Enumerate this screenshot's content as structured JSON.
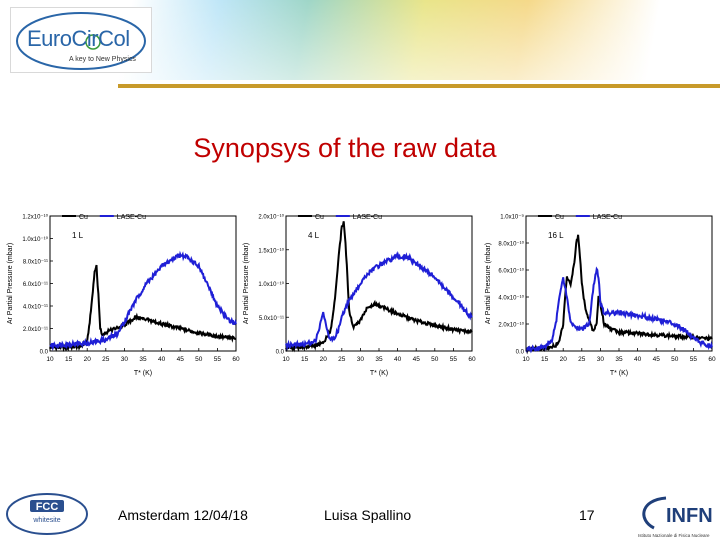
{
  "header": {
    "logo_main": "EuroCirCol",
    "logo_tagline": "A key to New Physics"
  },
  "title": "Synopsys of the raw data",
  "footer": {
    "fcc_logo_text": "FCC",
    "fcc_logo_sub": "whitesite",
    "location_date": "Amsterdam 12/04/18",
    "author": "Luisa Spallino",
    "page_number": "17",
    "infn_logo": "INFN",
    "infn_sub": "Istituto Nazionale di Fisica Nucleare"
  },
  "chart_data": [
    {
      "type": "line",
      "annotation": "1 L",
      "xlabel": "T* (K)",
      "ylabel": "Ar Partial Pressure (mbar)",
      "xlim": [
        10,
        60
      ],
      "ylim": [
        0,
        1.2e-10
      ],
      "xticks": [
        "10",
        "15",
        "20",
        "25",
        "30",
        "35",
        "40",
        "45",
        "50",
        "55",
        "60"
      ],
      "yticks": [
        {
          "v": 0,
          "label": "0.0"
        },
        {
          "v": 2e-11,
          "label": "2.0x10⁻¹¹"
        },
        {
          "v": 4e-11,
          "label": "4.0x10⁻¹¹"
        },
        {
          "v": 6e-11,
          "label": "6.0x10⁻¹¹"
        },
        {
          "v": 8e-11,
          "label": "8.0x10⁻¹¹"
        },
        {
          "v": 1e-10,
          "label": "1.0x10⁻¹⁰"
        },
        {
          "v": 1.2e-10,
          "label": "1.2x10⁻¹⁰"
        }
      ],
      "legend": "top",
      "series": [
        {
          "name": "Cu",
          "color": "#000000",
          "x": [
            10,
            18,
            20,
            21,
            22,
            22.5,
            23,
            23.5,
            24,
            26,
            30,
            33,
            36,
            40,
            45,
            50,
            55,
            60
          ],
          "y": [
            3e-12,
            4e-12,
            8e-12,
            3.5e-11,
            7e-11,
            7.5e-11,
            5e-11,
            2e-11,
            1.5e-11,
            1.8e-11,
            2.3e-11,
            3e-11,
            2.8e-11,
            2.4e-11,
            2e-11,
            1.6e-11,
            1.3e-11,
            1.1e-11
          ]
        },
        {
          "name": "LASE-Cu",
          "color": "#1f1fd6",
          "x": [
            10,
            20,
            25,
            28,
            30,
            33,
            36,
            40,
            43,
            45,
            47,
            50,
            53,
            55,
            58,
            60
          ],
          "y": [
            5e-12,
            7e-12,
            1e-11,
            1.5e-11,
            2.6e-11,
            4.5e-11,
            6e-11,
            7.5e-11,
            8.2e-11,
            8.5e-11,
            8.3e-11,
            7.5e-11,
            5.5e-11,
            4e-11,
            2.8e-11,
            2.4e-11
          ]
        }
      ]
    },
    {
      "type": "line",
      "annotation": "4 L",
      "xlabel": "T* (K)",
      "ylabel": "Ar Partial Pressure (mbar)",
      "xlim": [
        10,
        60
      ],
      "ylim": [
        0,
        2e-10
      ],
      "xticks": [
        "10",
        "15",
        "20",
        "25",
        "30",
        "35",
        "40",
        "45",
        "50",
        "55",
        "60"
      ],
      "yticks": [
        {
          "v": 0,
          "label": "0.0"
        },
        {
          "v": 5e-11,
          "label": "5.0x10⁻¹¹"
        },
        {
          "v": 1e-10,
          "label": "1.0x10⁻¹⁰"
        },
        {
          "v": 1.5e-10,
          "label": "1.5x10⁻¹⁰"
        },
        {
          "v": 2e-10,
          "label": "2.0x10⁻¹⁰"
        }
      ],
      "legend": "top",
      "series": [
        {
          "name": "Cu",
          "color": "#000000",
          "x": [
            10,
            15,
            18,
            20,
            22,
            23,
            24,
            25,
            25.5,
            26,
            27,
            28,
            30,
            32,
            34,
            36,
            40,
            45,
            50,
            55,
            60
          ],
          "y": [
            5e-12,
            6e-12,
            8e-12,
            1.2e-11,
            3e-11,
            7e-11,
            1.3e-10,
            1.85e-10,
            1.9e-10,
            1.6e-10,
            6e-11,
            3.5e-11,
            4.5e-11,
            6.5e-11,
            7e-11,
            6.5e-11,
            5.5e-11,
            4.5e-11,
            3.8e-11,
            3.2e-11,
            2.8e-11
          ]
        },
        {
          "name": "LASE-Cu",
          "color": "#1f1fd6",
          "x": [
            10,
            15,
            18,
            19,
            20,
            21,
            22,
            23,
            24,
            25,
            27,
            30,
            33,
            36,
            40,
            43,
            46,
            50,
            53,
            56,
            58,
            60
          ],
          "y": [
            8e-12,
            1e-11,
            1.5e-11,
            3.5e-11,
            6e-11,
            3e-11,
            1.8e-11,
            2e-11,
            3e-11,
            5e-11,
            7.5e-11,
            1e-10,
            1.2e-10,
            1.3e-10,
            1.4e-10,
            1.38e-10,
            1.25e-10,
            1.1e-10,
            9e-11,
            7.5e-11,
            6e-11,
            5e-11
          ]
        }
      ]
    },
    {
      "type": "line",
      "annotation": "16 L",
      "xlabel": "T* (K)",
      "ylabel": "Ar Partial Pressure (mbar)",
      "xlim": [
        10,
        60
      ],
      "ylim": [
        0,
        1e-09
      ],
      "xticks": [
        "10",
        "15",
        "20",
        "25",
        "30",
        "35",
        "40",
        "45",
        "50",
        "55",
        "60"
      ],
      "yticks": [
        {
          "v": 0,
          "label": "0.0"
        },
        {
          "v": 2e-10,
          "label": "2.0x10⁻¹⁰"
        },
        {
          "v": 4e-10,
          "label": "4.0x10⁻¹⁰"
        },
        {
          "v": 6e-10,
          "label": "6.0x10⁻¹⁰"
        },
        {
          "v": 8e-10,
          "label": "8.0x10⁻¹⁰"
        },
        {
          "v": 1e-09,
          "label": "1.0x10⁻⁹"
        }
      ],
      "legend": "top",
      "series": [
        {
          "name": "Cu",
          "color": "#000000",
          "x": [
            10,
            15,
            18,
            19,
            20,
            20.5,
            21,
            22,
            23,
            23.5,
            24,
            24.5,
            25,
            26,
            28,
            29,
            29.5,
            30,
            31,
            33,
            35,
            40,
            45,
            50,
            55,
            60
          ],
          "y": [
            1e-11,
            2e-11,
            4e-11,
            8e-11,
            2e-10,
            4e-10,
            5.5e-10,
            5e-10,
            6.5e-10,
            8e-10,
            8.5e-10,
            7e-10,
            5e-10,
            3e-10,
            1.5e-10,
            2e-10,
            4e-10,
            3.5e-10,
            2e-10,
            1.6e-10,
            1.4e-10,
            1.3e-10,
            1.2e-10,
            1.1e-10,
            1e-10,
            9e-11
          ]
        },
        {
          "name": "LASE-Cu",
          "color": "#1f1fd6",
          "x": [
            10,
            15,
            17,
            18,
            19,
            20,
            21,
            22,
            23,
            25,
            27,
            28,
            29,
            29.5,
            30,
            31,
            33,
            36,
            40,
            45,
            50,
            53,
            55,
            57,
            60
          ],
          "y": [
            1e-11,
            3e-11,
            8e-11,
            2e-10,
            4e-10,
            5.5e-10,
            4e-10,
            2.2e-10,
            1.8e-10,
            1.6e-10,
            2e-10,
            4.5e-10,
            6e-10,
            5.5e-10,
            3.5e-10,
            2.8e-10,
            2.8e-10,
            2.8e-10,
            2.6e-10,
            2.4e-10,
            2e-10,
            1.5e-10,
            1e-10,
            6e-11,
            3e-11
          ]
        }
      ]
    }
  ]
}
